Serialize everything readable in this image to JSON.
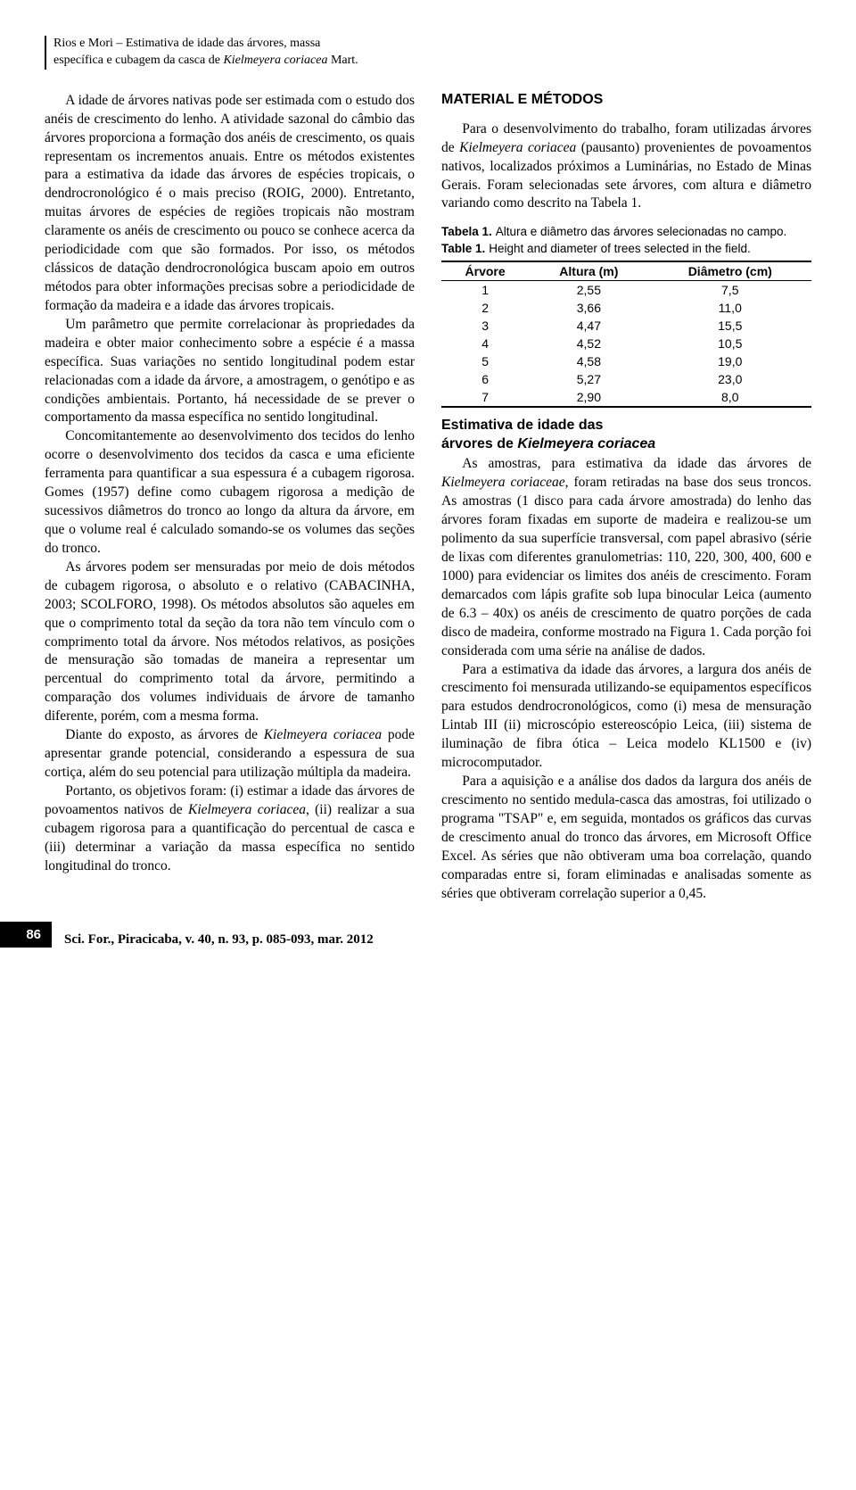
{
  "header": {
    "line1": "Rios e Mori – Estimativa de idade das árvores, massa",
    "line2_a": "específica e cubagem da casca de ",
    "line2_b": "Kielmeyera coriacea",
    "line2_c": " Mart."
  },
  "left": {
    "p1": "A idade de árvores nativas pode ser estimada com o estudo dos anéis de crescimento do lenho. A atividade sazonal do câmbio das árvores proporciona a formação dos anéis de crescimento, os quais representam os incrementos anuais. Entre os métodos existentes para a estimativa da idade das árvores de espécies tropicais, o dendrocronológico é o mais preciso (ROIG, 2000). Entretanto, muitas árvores de espécies de regiões tropicais não mostram claramente os anéis de crescimento ou pouco se conhece acerca da periodicidade com que são formados. Por isso, os métodos clássicos de datação dendrocronológica buscam apoio em outros métodos para obter informações precisas sobre a periodicidade de formação da madeira e a idade das árvores tropicais.",
    "p2": "Um parâmetro que permite correlacionar às propriedades da madeira e obter maior conhecimento sobre a espécie é a massa específica. Suas variações no sentido longitudinal podem estar relacionadas com a idade da árvore, a amostragem, o genótipo e as condições ambientais. Portanto, há necessidade de se prever o comportamento da massa específica no sentido longitudinal.",
    "p3": "Concomitantemente ao desenvolvimento dos tecidos do lenho ocorre o desenvolvimento dos tecidos da casca e uma eficiente ferramenta para quantificar a sua espessura é a cubagem rigorosa. Gomes (1957) define como cubagem rigorosa a medição de sucessivos diâmetros do tronco ao longo da altura da árvore, em que o volume real é calculado somando-se os volumes das seções do tronco.",
    "p4": "As árvores podem ser mensuradas por meio de dois métodos de cubagem rigorosa, o absoluto e o relativo (CABACINHA, 2003; SCOLFORO, 1998). Os métodos absolutos são aqueles em que o comprimento total da seção da tora não tem vínculo com o comprimento total da árvore. Nos métodos relativos, as posições de mensuração são tomadas de maneira a representar um percentual do comprimento total da árvore, permitindo a comparação dos volumes individuais de árvore de tamanho diferente, porém, com a mesma forma.",
    "p5_a": "Diante do exposto, as árvores de ",
    "p5_b": "Kielmeyera coriacea",
    "p5_c": " pode apresentar grande potencial, considerando a espessura de sua cortiça, além do seu potencial para utilização múltipla da madeira.",
    "p6_a": "Portanto, os objetivos foram: (i) estimar a idade das árvores de povoamentos nativos de ",
    "p6_b": "Kielmeyera coriacea",
    "p6_c": ", (ii) realizar a sua cubagem rigorosa para a quantificação do percentual de casca e (iii) determinar a variação da massa específica no sentido longitudinal do tronco."
  },
  "right": {
    "h2": "MATERIAL E MÉTODOS",
    "p1_a": "Para o desenvolvimento do trabalho, foram utilizadas árvores de ",
    "p1_b": "Kielmeyera coriacea",
    "p1_c": " (pausanto) provenientes de povoamentos nativos, localizados próximos a Luminárias, no Estado de Minas Gerais. Foram selecionadas sete árvores, com altura e diâmetro variando como descrito na Tabela 1.",
    "table_caption": {
      "t1_label": "Tabela 1.",
      "t1_desc": "Altura e diâmetro das árvores selecionadas no campo.",
      "t2_label": "Table 1.",
      "t2_desc": "Height and diameter of trees selected in the field."
    },
    "table": {
      "columns": [
        "Árvore",
        "Altura (m)",
        "Diâmetro (cm)"
      ],
      "rows": [
        [
          "1",
          "2,55",
          "7,5"
        ],
        [
          "2",
          "3,66",
          "11,0"
        ],
        [
          "3",
          "4,47",
          "15,5"
        ],
        [
          "4",
          "4,52",
          "10,5"
        ],
        [
          "5",
          "4,58",
          "19,0"
        ],
        [
          "6",
          "5,27",
          "23,0"
        ],
        [
          "7",
          "2,90",
          "8,0"
        ]
      ]
    },
    "h3_a": "Estimativa de idade das",
    "h3_b": "árvores de ",
    "h3_c": "Kielmeyera coriacea",
    "p2_a": "As amostras, para estimativa da idade das árvores de ",
    "p2_b": "Kielmeyera coriaceae",
    "p2_c": ", foram retiradas na base dos seus troncos. As amostras (1 disco para cada árvore amostrada) do lenho das árvores foram fixadas em suporte de madeira e realizou-se um polimento da sua superfície transversal, com papel abrasivo (série de lixas com diferentes granulometrias: 110, 220, 300, 400, 600 e 1000) para evidenciar os limites dos anéis de crescimento. Foram demarcados com lápis grafite sob lupa binocular Leica (aumento de 6.3 – 40x) os anéis de crescimento de quatro porções de cada disco de madeira, conforme mostrado na Figura 1. Cada porção foi considerada com uma série na análise de dados.",
    "p3": "Para a estimativa da idade das árvores, a largura dos anéis de crescimento foi mensurada utilizando-se equipamentos específicos para estudos dendrocronológicos, como (i) mesa de mensuração Lintab III (ii) microscópio estereoscópio Leica, (iii) sistema de iluminação de fibra ótica – Leica modelo KL1500 e (iv) microcomputador.",
    "p4": "Para a aquisição e a análise dos dados da largura dos anéis de crescimento no sentido medula-casca das amostras, foi utilizado o programa \"TSAP\" e, em seguida, montados os gráficos das curvas de crescimento anual do tronco das árvores, em Microsoft Office Excel. As séries que não obtiveram uma boa correlação, quando comparadas entre si, foram eliminadas e analisadas somente as séries que obtiveram correlação superior a 0,45."
  },
  "footer": {
    "page": "86",
    "citation": "Sci. For., Piracicaba, v. 40, n. 93, p. 085-093, mar. 2012"
  }
}
